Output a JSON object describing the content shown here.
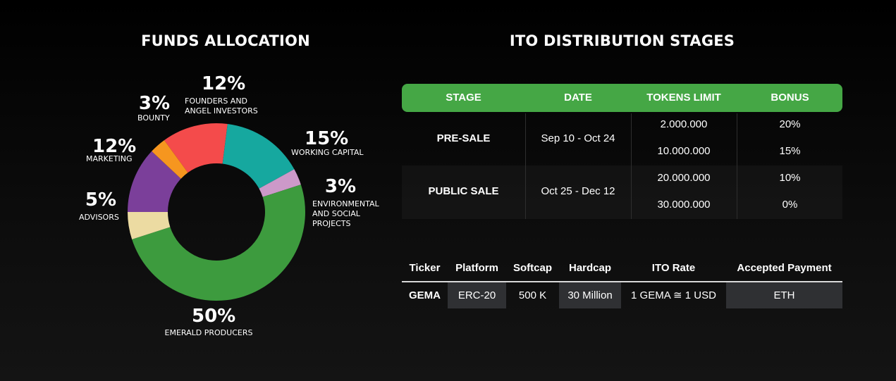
{
  "funds_allocation": {
    "title": "FUNDS ALLOCATION"
  },
  "chart_data": {
    "type": "pie",
    "title": "FUNDS ALLOCATION",
    "donut": true,
    "slices": [
      {
        "label": "FOUNDERS AND ANGEL INVESTORS",
        "value": 12,
        "pct_label": "12%",
        "color": "#f44b4b"
      },
      {
        "label": "WORKING CAPITAL",
        "value": 15,
        "pct_label": "15%",
        "color": "#16a89f"
      },
      {
        "label": "ENVIRONMENTAL AND SOCIAL PROJECTS",
        "value": 3,
        "pct_label": "3%",
        "color": "#cc99c9"
      },
      {
        "label": "EMERALD PRODUCERS",
        "value": 50,
        "pct_label": "50%",
        "color": "#3d9b3e"
      },
      {
        "label": "ADVISORS",
        "value": 5,
        "pct_label": "5%",
        "color": "#ecdba2"
      },
      {
        "label": "MARKETING",
        "value": 12,
        "pct_label": "12%",
        "color": "#7b3f9a"
      },
      {
        "label": "BOUNTY",
        "value": 3,
        "pct_label": "3%",
        "color": "#f6961f"
      }
    ]
  },
  "ito_stages": {
    "title": "ITO DISTRIBUTION STAGES",
    "headers": [
      "STAGE",
      "DATE",
      "TOKENS LIMIT",
      "BONUS"
    ],
    "stages": [
      {
        "name": "PRE-SALE",
        "date": "Sep 10 - Oct 24",
        "tiers": [
          {
            "tokens": "2.000.000",
            "bonus": "20%"
          },
          {
            "tokens": "10.000.000",
            "bonus": "15%"
          }
        ]
      },
      {
        "name": "PUBLIC SALE",
        "date": "Oct 25 - Dec 12",
        "tiers": [
          {
            "tokens": "20.000.000",
            "bonus": "10%"
          },
          {
            "tokens": "30.000.000",
            "bonus": "0%"
          }
        ]
      }
    ],
    "header_color": "#45a745"
  },
  "token_info": {
    "headers": [
      "Ticker",
      "Platform",
      "Softcap",
      "Hardcap",
      "ITO Rate",
      "Accepted Payment"
    ],
    "values": [
      "GEMA",
      "ERC-20",
      "500 K",
      "30 Million",
      "1 GEMA ≅ 1 USD",
      "ETH"
    ]
  }
}
